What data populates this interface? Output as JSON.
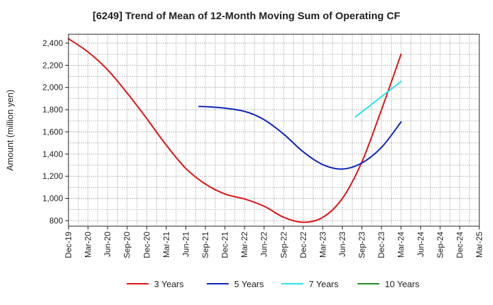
{
  "chart_data": {
    "type": "line",
    "title": "[6249]  Trend of Mean of 12-Month Moving Sum of Operating CF",
    "ylabel": "Amount (million yen)",
    "xlabel": "",
    "ylim": [
      750,
      2480
    ],
    "yticks": [
      800,
      1000,
      1200,
      1400,
      1600,
      1800,
      2000,
      2200,
      2400
    ],
    "ytick_labels": [
      "800",
      "1,000",
      "1,200",
      "1,400",
      "1,600",
      "1,800",
      "2,000",
      "2,200",
      "2,400"
    ],
    "categories": [
      "Dec-19",
      "Mar-20",
      "Jun-20",
      "Sep-20",
      "Dec-20",
      "Mar-21",
      "Jun-21",
      "Sep-21",
      "Dec-21",
      "Mar-22",
      "Jun-22",
      "Sep-22",
      "Dec-22",
      "Mar-23",
      "Jun-23",
      "Sep-23",
      "Dec-23",
      "Mar-24",
      "Jun-24",
      "Sep-24",
      "Dec-24",
      "Mar-25"
    ],
    "grid": true,
    "legend_position": "bottom",
    "series": [
      {
        "name": "3 Years",
        "color": "#dd1111",
        "points": [
          [
            0,
            2440
          ],
          [
            1,
            2320
          ],
          [
            2,
            2160
          ],
          [
            3,
            1950
          ],
          [
            4,
            1720
          ],
          [
            5,
            1480
          ],
          [
            6,
            1270
          ],
          [
            7,
            1130
          ],
          [
            8,
            1040
          ],
          [
            9,
            995
          ],
          [
            10,
            930
          ],
          [
            11,
            830
          ],
          [
            12,
            785
          ],
          [
            13,
            830
          ],
          [
            14,
            1000
          ],
          [
            15,
            1330
          ],
          [
            16,
            1800
          ],
          [
            17,
            2300
          ]
        ]
      },
      {
        "name": "5 Years",
        "color": "#0b22bb",
        "points": [
          [
            6.67,
            1830
          ],
          [
            7.67,
            1820
          ],
          [
            9,
            1785
          ],
          [
            10,
            1710
          ],
          [
            11,
            1580
          ],
          [
            12,
            1420
          ],
          [
            13,
            1305
          ],
          [
            14,
            1265
          ],
          [
            15,
            1320
          ],
          [
            16,
            1460
          ],
          [
            17,
            1690
          ]
        ]
      },
      {
        "name": "7 Years",
        "color": "#22e5ee",
        "points": [
          [
            14.67,
            1735
          ],
          [
            17,
            2055
          ]
        ]
      },
      {
        "name": "10 Years",
        "color": "#228822",
        "points": []
      }
    ]
  }
}
